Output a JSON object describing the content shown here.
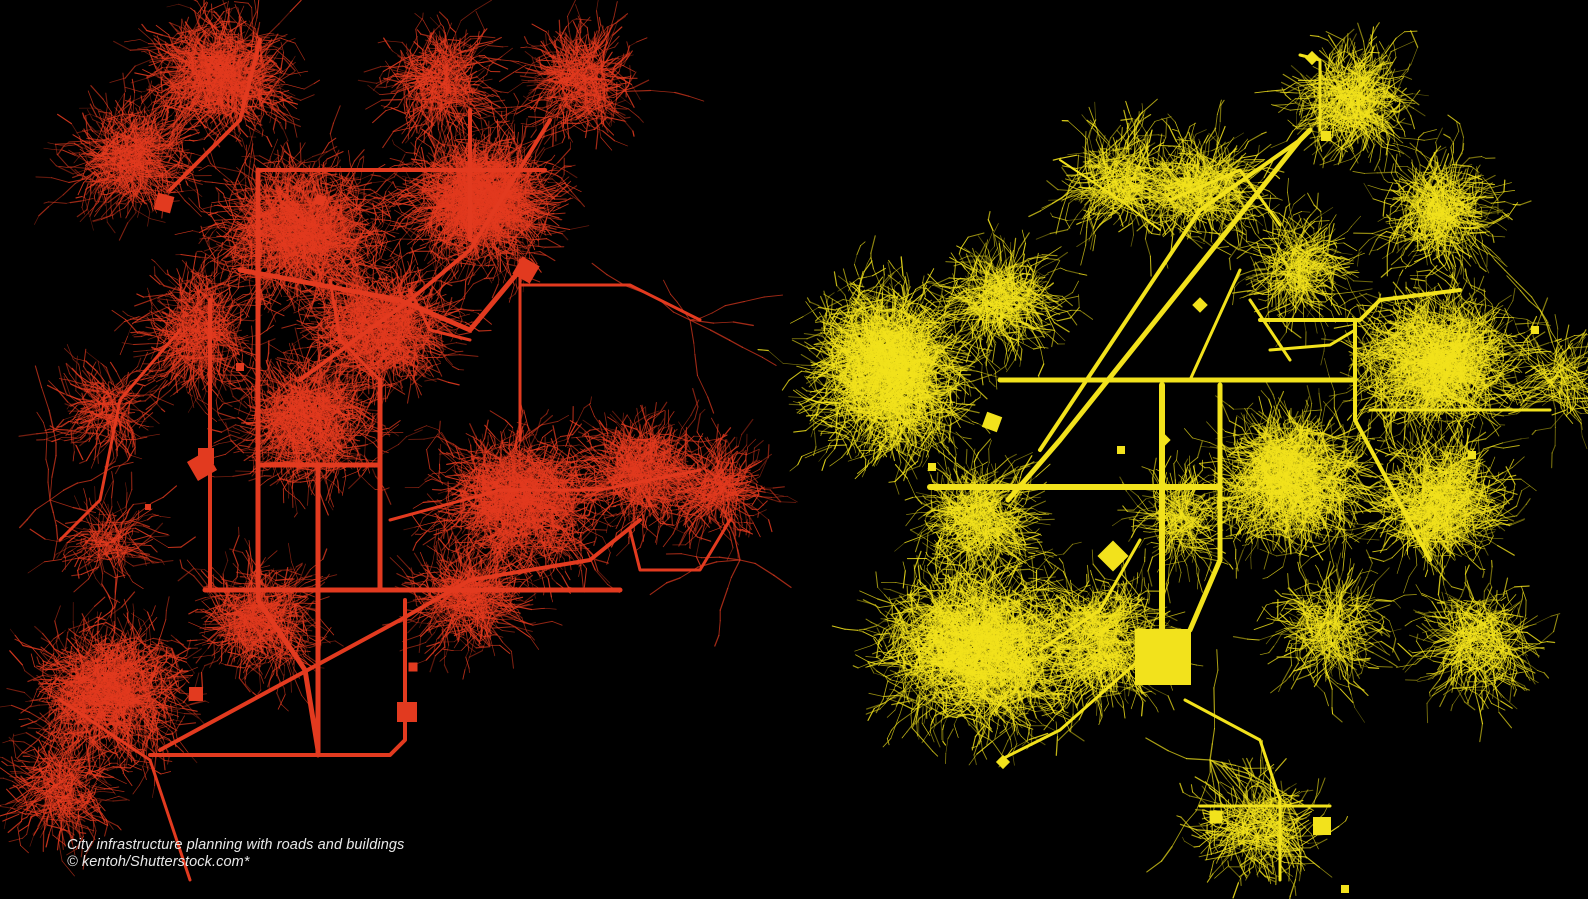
{
  "caption": {
    "line1": "City infrastructure planning with roads and buildings",
    "line2": "© kentoh/Shutterstock.com*"
  },
  "colors": {
    "background": "#000000",
    "left_network": "#e23a1f",
    "right_network": "#f2e21c",
    "caption_text": "#e8e8e8"
  },
  "networks": [
    {
      "name": "left-road-network",
      "color": "#e23a1f"
    },
    {
      "name": "right-road-network",
      "color": "#f2e21c"
    }
  ]
}
